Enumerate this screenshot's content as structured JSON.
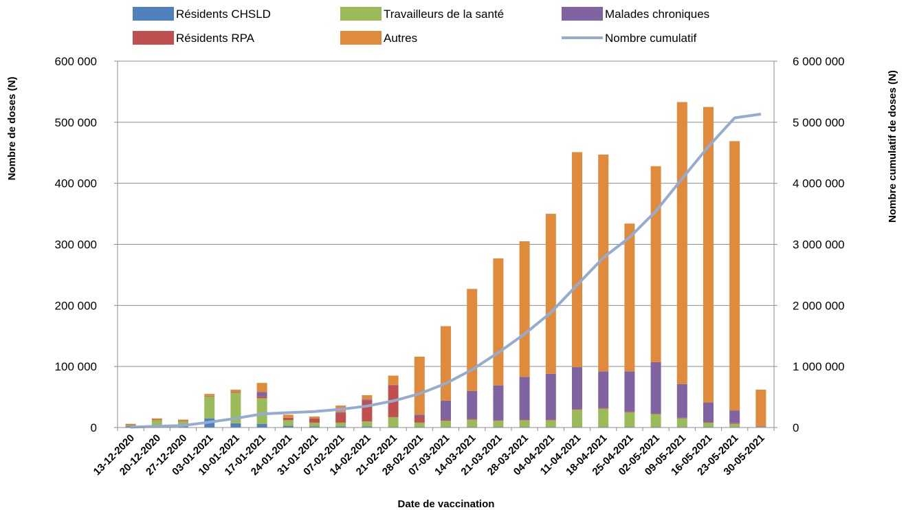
{
  "chart_data": {
    "type": "bar",
    "stacked": true,
    "xlabel": "Date de vaccination",
    "ylabel": "Nombre de doses (N)",
    "y2label": "Nombre cumulatif de doses (N)",
    "ylim": [
      0,
      600000
    ],
    "y2lim": [
      0,
      6000000
    ],
    "yticks": [
      "0",
      "100 000",
      "200 000",
      "300 000",
      "400 000",
      "500 000",
      "600 000"
    ],
    "y2ticks": [
      "0",
      "1 000 000",
      "2 000 000",
      "3 000 000",
      "4 000 000",
      "5 000 000",
      "6 000 000"
    ],
    "grid": true,
    "legend_position": "top",
    "categories": [
      "13-12-2020",
      "20-12-2020",
      "27-12-2020",
      "03-01-2021",
      "10-01-2021",
      "17-01-2021",
      "24-01-2021",
      "31-01-2021",
      "07-02-2021",
      "14-02-2021",
      "21-02-2021",
      "28-02-2021",
      "07-03-2021",
      "14-03-2021",
      "21-03-2021",
      "28-03-2021",
      "04-04-2021",
      "11-04-2021",
      "18-04-2021",
      "25-04-2021",
      "02-05-2021",
      "09-05-2021",
      "16-05-2021",
      "23-05-2021",
      "30-05-2021"
    ],
    "series": [
      {
        "name": "Résidents CHSLD",
        "color": "#4f81bd",
        "values": [
          2000,
          2000,
          2000,
          15000,
          7000,
          6000,
          3000,
          2000,
          2000,
          2000,
          1000,
          1000,
          1000,
          1000,
          1000,
          1000,
          1000,
          1000,
          1000,
          1000,
          1000,
          1000,
          1000,
          1000,
          0
        ]
      },
      {
        "name": "Travailleurs de la santé",
        "color": "#9bbb59",
        "values": [
          2000,
          10000,
          8000,
          36000,
          50000,
          42000,
          9000,
          6000,
          6000,
          8000,
          16000,
          7000,
          10000,
          12000,
          10000,
          11000,
          11000,
          28000,
          30000,
          24000,
          21000,
          14000,
          7000,
          5000,
          1000
        ]
      },
      {
        "name": "Résidents RPA",
        "color": "#c0504d",
        "values": [
          1000,
          1000,
          1000,
          1000,
          1000,
          3000,
          4000,
          7000,
          15000,
          34000,
          52000,
          10000,
          2000,
          1000,
          1000,
          1000,
          1000,
          1000,
          1000,
          1000,
          1000,
          1000,
          1000,
          1000,
          0
        ]
      },
      {
        "name": "Malades chroniques",
        "color": "#8064a2",
        "values": [
          0,
          0,
          0,
          0,
          0,
          7000,
          0,
          0,
          2000,
          2000,
          1000,
          3000,
          31000,
          46000,
          57000,
          70000,
          75000,
          69000,
          60000,
          66000,
          84000,
          55000,
          32000,
          21000,
          1000
        ]
      },
      {
        "name": "Autres",
        "color": "#e08a3c",
        "values": [
          1000,
          2000,
          2000,
          3000,
          4000,
          15000,
          5000,
          3000,
          11000,
          7000,
          15000,
          95000,
          122000,
          167000,
          208000,
          222000,
          262000,
          352000,
          355000,
          242000,
          321000,
          462000,
          484000,
          441000,
          60000
        ]
      }
    ],
    "line": {
      "name": "Nombre cumulatif",
      "color": "#94acd2",
      "values": [
        6000,
        21000,
        33000,
        88000,
        150000,
        223000,
        244000,
        262000,
        298000,
        351000,
        436000,
        553000,
        720000,
        948000,
        1226000,
        1532000,
        1882000,
        2334000,
        2781000,
        3115000,
        3543000,
        4076000,
        4601000,
        5071000,
        5133000
      ]
    }
  }
}
